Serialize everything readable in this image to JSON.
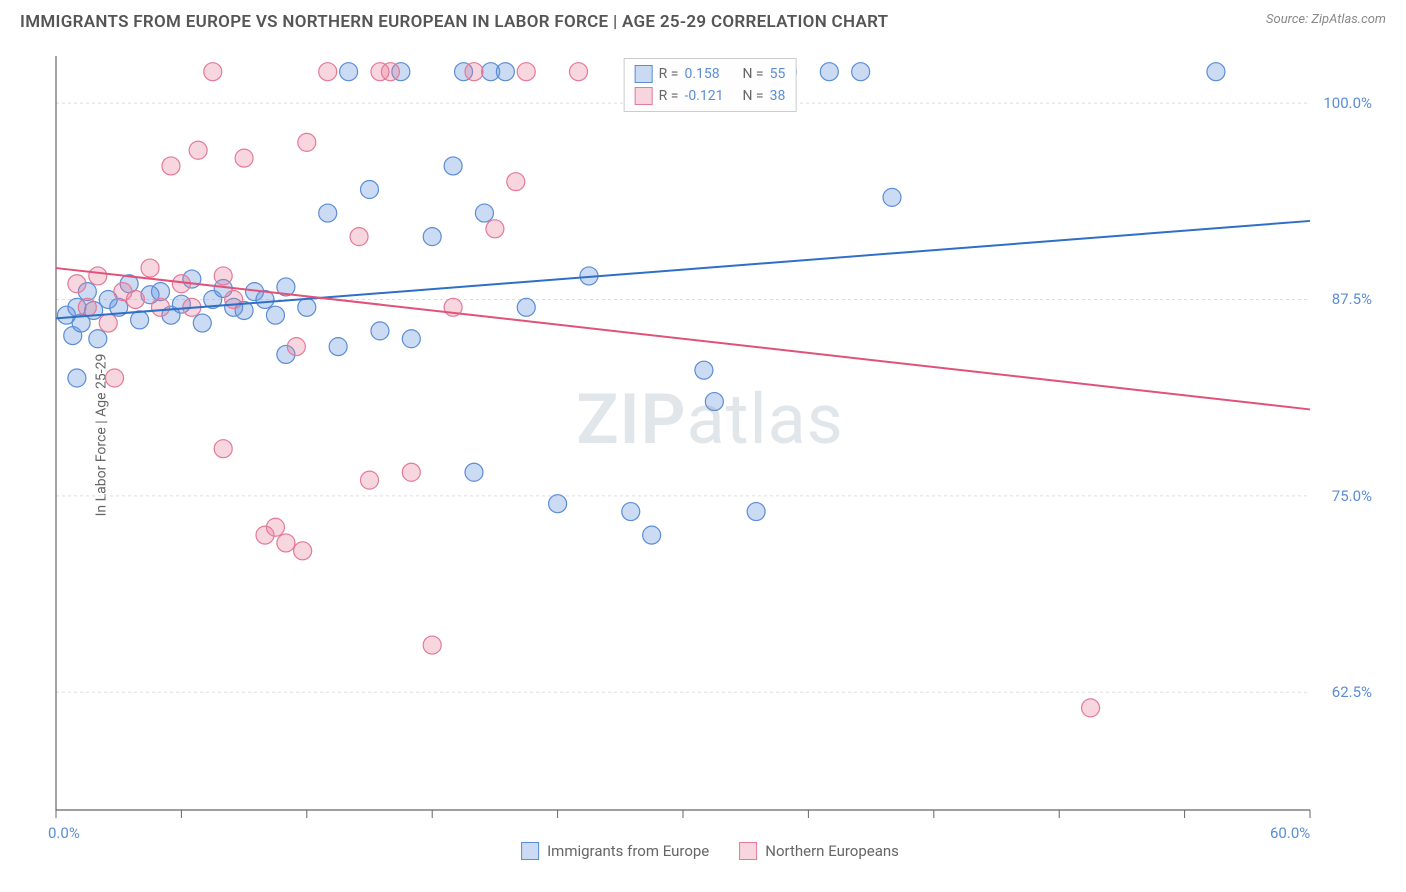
{
  "title": "IMMIGRANTS FROM EUROPE VS NORTHERN EUROPEAN IN LABOR FORCE | AGE 25-29 CORRELATION CHART",
  "source": "Source: ZipAtlas.com",
  "y_axis_label": "In Labor Force | Age 25-29",
  "watermark_bold": "ZIP",
  "watermark_rest": "atlas",
  "chart": {
    "type": "scatter",
    "background_color": "#ffffff",
    "grid_color": "#dddddd",
    "axis_line_color": "#666666",
    "xlim": [
      0,
      60
    ],
    "ylim": [
      55,
      103
    ],
    "x_ticks": [
      0,
      6,
      12,
      18,
      24,
      30,
      36,
      42,
      48,
      54,
      60
    ],
    "x_tick_labels": {
      "0": "0.0%",
      "60": "60.0%"
    },
    "y_ticks": [
      62.5,
      75.0,
      87.5,
      100.0
    ],
    "y_tick_labels": [
      "62.5%",
      "75.0%",
      "87.5%",
      "100.0%"
    ],
    "marker_radius": 9,
    "marker_opacity": 0.5,
    "line_width": 2,
    "series": [
      {
        "name": "Immigrants from Europe",
        "color_fill": "rgba(103,153,220,0.35)",
        "color_stroke": "#5b8dd6",
        "line_color": "#2f6fc6",
        "R": "0.158",
        "N": "55",
        "trend_start": {
          "x": 0,
          "y": 86.3
        },
        "trend_end": {
          "x": 60,
          "y": 92.5
        },
        "points": [
          {
            "x": 0.5,
            "y": 86.5
          },
          {
            "x": 0.8,
            "y": 85.2
          },
          {
            "x": 1.0,
            "y": 87.0
          },
          {
            "x": 1.2,
            "y": 86.0
          },
          {
            "x": 1.5,
            "y": 88.0
          },
          {
            "x": 1.8,
            "y": 86.8
          },
          {
            "x": 2.0,
            "y": 85.0
          },
          {
            "x": 2.5,
            "y": 87.5
          },
          {
            "x": 3.0,
            "y": 87.0
          },
          {
            "x": 3.5,
            "y": 88.5
          },
          {
            "x": 4.0,
            "y": 86.2
          },
          {
            "x": 4.5,
            "y": 87.8
          },
          {
            "x": 5.0,
            "y": 88.0
          },
          {
            "x": 5.5,
            "y": 86.5
          },
          {
            "x": 6.0,
            "y": 87.2
          },
          {
            "x": 6.5,
            "y": 88.8
          },
          {
            "x": 7.0,
            "y": 86.0
          },
          {
            "x": 7.5,
            "y": 87.5
          },
          {
            "x": 8.0,
            "y": 88.2
          },
          {
            "x": 8.5,
            "y": 87.0
          },
          {
            "x": 9.0,
            "y": 86.8
          },
          {
            "x": 9.5,
            "y": 88.0
          },
          {
            "x": 10.0,
            "y": 87.5
          },
          {
            "x": 10.5,
            "y": 86.5
          },
          {
            "x": 11.0,
            "y": 88.3
          },
          {
            "x": 11.0,
            "y": 84.0
          },
          {
            "x": 12.0,
            "y": 87.0
          },
          {
            "x": 13.0,
            "y": 93.0
          },
          {
            "x": 13.5,
            "y": 84.5
          },
          {
            "x": 14.0,
            "y": 102.0
          },
          {
            "x": 15.0,
            "y": 94.5
          },
          {
            "x": 15.5,
            "y": 85.5
          },
          {
            "x": 16.5,
            "y": 102.0
          },
          {
            "x": 17.0,
            "y": 85.0
          },
          {
            "x": 18.0,
            "y": 91.5
          },
          {
            "x": 19.0,
            "y": 96.0
          },
          {
            "x": 19.5,
            "y": 102.0
          },
          {
            "x": 20.0,
            "y": 76.5
          },
          {
            "x": 20.5,
            "y": 93.0
          },
          {
            "x": 20.8,
            "y": 102.0
          },
          {
            "x": 21.5,
            "y": 102.0
          },
          {
            "x": 22.5,
            "y": 87.0
          },
          {
            "x": 24.0,
            "y": 74.5
          },
          {
            "x": 25.5,
            "y": 89.0
          },
          {
            "x": 27.5,
            "y": 74.0
          },
          {
            "x": 28.5,
            "y": 72.5
          },
          {
            "x": 31.0,
            "y": 83.0
          },
          {
            "x": 31.5,
            "y": 81.0
          },
          {
            "x": 33.5,
            "y": 74.0
          },
          {
            "x": 35.0,
            "y": 102.0
          },
          {
            "x": 37.0,
            "y": 102.0
          },
          {
            "x": 38.5,
            "y": 102.0
          },
          {
            "x": 40.0,
            "y": 94.0
          },
          {
            "x": 55.5,
            "y": 102.0
          },
          {
            "x": 1.0,
            "y": 82.5
          }
        ]
      },
      {
        "name": "Northern Europeans",
        "color_fill": "rgba(232,120,150,0.3)",
        "color_stroke": "#e47a97",
        "line_color": "#e0527a",
        "R": "-0.121",
        "N": "38",
        "trend_start": {
          "x": 0,
          "y": 89.5
        },
        "trend_end": {
          "x": 60,
          "y": 80.5
        },
        "points": [
          {
            "x": 1.0,
            "y": 88.5
          },
          {
            "x": 1.5,
            "y": 87.0
          },
          {
            "x": 2.0,
            "y": 89.0
          },
          {
            "x": 2.5,
            "y": 86.0
          },
          {
            "x": 2.8,
            "y": 82.5
          },
          {
            "x": 3.2,
            "y": 88.0
          },
          {
            "x": 3.8,
            "y": 87.5
          },
          {
            "x": 4.5,
            "y": 89.5
          },
          {
            "x": 5.0,
            "y": 87.0
          },
          {
            "x": 5.5,
            "y": 96.0
          },
          {
            "x": 6.0,
            "y": 88.5
          },
          {
            "x": 6.5,
            "y": 87.0
          },
          {
            "x": 6.8,
            "y": 97.0
          },
          {
            "x": 7.5,
            "y": 102.0
          },
          {
            "x": 8.0,
            "y": 89.0
          },
          {
            "x": 8.0,
            "y": 78.0
          },
          {
            "x": 8.5,
            "y": 87.5
          },
          {
            "x": 9.0,
            "y": 96.5
          },
          {
            "x": 10.0,
            "y": 72.5
          },
          {
            "x": 10.5,
            "y": 73.0
          },
          {
            "x": 11.0,
            "y": 72.0
          },
          {
            "x": 11.5,
            "y": 84.5
          },
          {
            "x": 11.8,
            "y": 71.5
          },
          {
            "x": 12.0,
            "y": 97.5
          },
          {
            "x": 13.0,
            "y": 102.0
          },
          {
            "x": 14.5,
            "y": 91.5
          },
          {
            "x": 15.0,
            "y": 76.0
          },
          {
            "x": 15.5,
            "y": 102.0
          },
          {
            "x": 16.0,
            "y": 102.0
          },
          {
            "x": 17.0,
            "y": 76.5
          },
          {
            "x": 18.0,
            "y": 65.5
          },
          {
            "x": 19.0,
            "y": 87.0
          },
          {
            "x": 20.0,
            "y": 102.0
          },
          {
            "x": 21.0,
            "y": 92.0
          },
          {
            "x": 22.0,
            "y": 95.0
          },
          {
            "x": 22.5,
            "y": 102.0
          },
          {
            "x": 25.0,
            "y": 102.0
          },
          {
            "x": 49.5,
            "y": 61.5
          }
        ]
      }
    ]
  },
  "legend_bottom": [
    {
      "label": "Immigrants from Europe",
      "fill": "rgba(103,153,220,0.35)",
      "stroke": "#5b8dd6"
    },
    {
      "label": "Northern Europeans",
      "fill": "rgba(232,120,150,0.3)",
      "stroke": "#e47a97"
    }
  ],
  "legend_top": {
    "r_label": "R  =",
    "n_label": "N  ="
  }
}
